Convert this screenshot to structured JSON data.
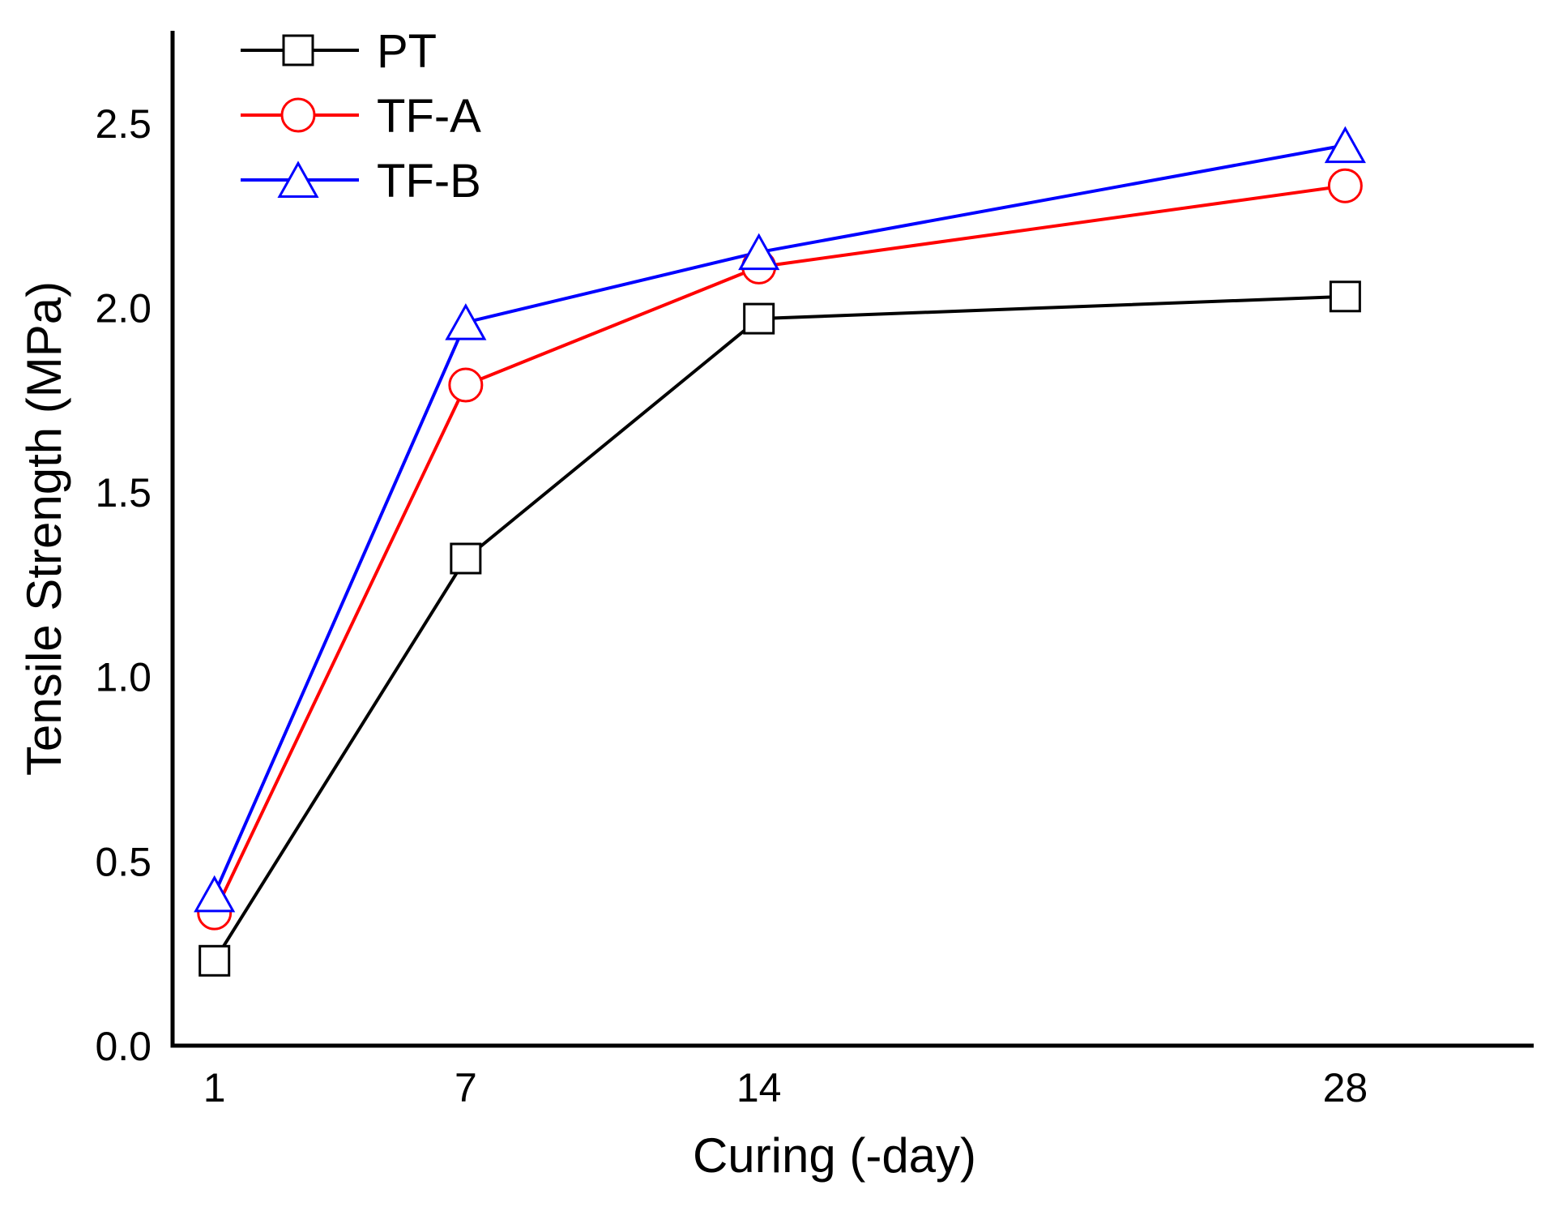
{
  "figure": {
    "background_color": "#ffffff",
    "axis_color": "#000000"
  },
  "chart_data": {
    "type": "line",
    "title": "",
    "xlabel": "Curing (-day)",
    "ylabel": "Tensile Strength (MPa)",
    "xlim": [
      0,
      32.5
    ],
    "ylim": [
      0,
      2.75
    ],
    "grid": false,
    "legend_position": "top-left-inside",
    "x_ticks": [
      1,
      7,
      14,
      28
    ],
    "x_tick_labels": [
      "1",
      "7",
      "14",
      "28"
    ],
    "y_ticks": [
      0.0,
      0.5,
      1.0,
      1.5,
      2.0,
      2.5
    ],
    "y_tick_labels": [
      "0.0",
      "0.5",
      "1.0",
      "1.5",
      "2.0",
      "2.5"
    ],
    "x": [
      1,
      7,
      14,
      28
    ],
    "series": [
      {
        "name": "PT",
        "marker": "square",
        "color": "#000000",
        "values": [
          0.23,
          1.32,
          1.97,
          2.03
        ]
      },
      {
        "name": "TF-A",
        "marker": "circle",
        "color": "#ff0000",
        "values": [
          0.36,
          1.79,
          2.11,
          2.33
        ]
      },
      {
        "name": "TF-B",
        "marker": "triangle",
        "color": "#0000ff",
        "values": [
          0.41,
          1.96,
          2.15,
          2.44
        ]
      }
    ]
  }
}
